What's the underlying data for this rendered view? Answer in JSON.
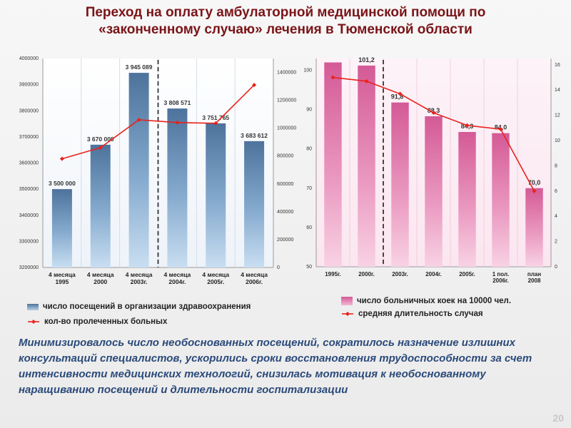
{
  "slide": {
    "title_line1": "Переход на оплату амбулаторной медицинской помощи по",
    "title_line2": "«законченному случаю» лечения в Тюменской области",
    "summary": "Минимизировалось число необоснованных посещений, сократилось назначение излишних консультаций специалистов, ускорились сроки восстановления трудоспособности за счет интенсивности медицинских технологий, снизилась мотивация к необоснованному наращиванию посещений и длительности госпитализации",
    "page_number": "20"
  },
  "colors": {
    "title": "#7a1418",
    "summary": "#2b4a7a",
    "line": "#e8221c",
    "bar_left": "#5b83ae",
    "bar_right": "#d96aa0"
  },
  "chart_data": [
    {
      "type": "bar",
      "categories": [
        [
          "4 месяца",
          "1995"
        ],
        [
          "4 месяца",
          "2000"
        ],
        [
          "4 месяца",
          "2003г."
        ],
        [
          "4 месяца",
          "2004г."
        ],
        [
          "4 месяца",
          "2005г."
        ],
        [
          "4 месяца",
          "2006г."
        ]
      ],
      "series": [
        {
          "name": "число посещений в организации здравоохранения",
          "kind": "bar",
          "axis": "left",
          "values": [
            3500000,
            3670000,
            3945089,
            3808571,
            3751765,
            3683612
          ],
          "labels": [
            "3 500 000",
            "3 670 000",
            "3 945 089",
            "3 808 571",
            "3 751 765",
            "3 683 612"
          ]
        },
        {
          "name": "кол-во пролеченных больных",
          "kind": "line",
          "axis": "right",
          "values": [
            780000,
            860000,
            1060000,
            1040000,
            1035000,
            1310000
          ]
        }
      ],
      "y_left": {
        "min": 3200000,
        "max": 4000000,
        "ticks": [
          3200000,
          3300000,
          3400000,
          3500000,
          3600000,
          3700000,
          3800000,
          3900000,
          4000000
        ]
      },
      "y_right": {
        "min": 0,
        "max": 1500000,
        "ticks": [
          0,
          200000,
          400000,
          600000,
          800000,
          1000000,
          1200000,
          1400000
        ]
      },
      "divider_after_index": 2
    },
    {
      "type": "bar",
      "categories": [
        [
          "1995г."
        ],
        [
          "2000г."
        ],
        [
          "2003г."
        ],
        [
          "2004г."
        ],
        [
          "2005г."
        ],
        [
          "1 пол.",
          "2006г."
        ],
        [
          "план",
          "2008"
        ]
      ],
      "series": [
        {
          "name": "число больничных коек на 10000 чел.",
          "kind": "bar",
          "axis": "left",
          "values": [
            102,
            101.2,
            91.8,
            88.3,
            84.3,
            84.0,
            70.0
          ],
          "labels": [
            "",
            "101,2",
            "91,8",
            "88,3",
            "84,3",
            "84,0",
            "70,0"
          ]
        },
        {
          "name": "средняя длительность случая",
          "kind": "line",
          "axis": "right",
          "values": [
            15,
            14.7,
            13.7,
            12.2,
            11.2,
            10.9,
            6
          ]
        }
      ],
      "y_left": {
        "min": 50,
        "max": 103,
        "ticks": [
          50,
          60,
          70,
          80,
          90,
          100
        ]
      },
      "y_right": {
        "min": 0,
        "max": 16.5,
        "ticks": [
          0,
          2,
          4,
          6,
          8,
          10,
          12,
          14,
          16
        ]
      },
      "divider_after_index": 1
    }
  ]
}
